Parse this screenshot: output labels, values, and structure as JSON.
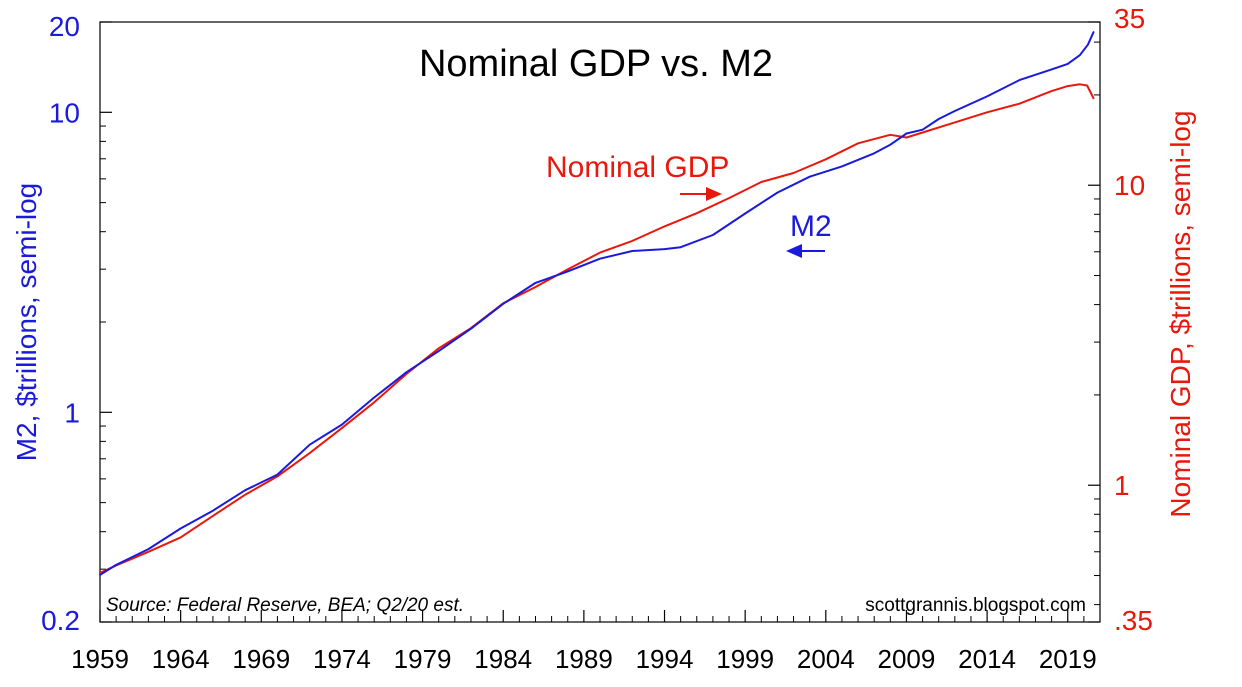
{
  "chart_data": {
    "type": "line",
    "title": "Nominal GDP vs. M2",
    "source_note": "Source:  Federal Reserve, BEA; Q2/20 est.",
    "credit": "scottgrannis.blogspot.com",
    "xlabel": "",
    "xlim": [
      1959,
      2021
    ],
    "x_ticks": [
      1959,
      1964,
      1969,
      1974,
      1979,
      1984,
      1989,
      1994,
      1999,
      2004,
      2009,
      2014,
      2019
    ],
    "y_left": {
      "label": "M2, $trillions, semi-log",
      "scale": "log",
      "range": [
        0.2,
        20
      ],
      "ticks": [
        {
          "value": 0.2,
          "label": "0.2"
        },
        {
          "value": 1,
          "label": "1"
        },
        {
          "value": 10,
          "label": "10"
        },
        {
          "value": 20,
          "label": "20"
        }
      ],
      "color": "#1a1adc"
    },
    "y_right": {
      "label": "Nominal GDP, $trillions, semi-log",
      "scale": "log",
      "range": [
        0.35,
        35
      ],
      "ticks": [
        {
          "value": 0.35,
          "label": ".35"
        },
        {
          "value": 1,
          "label": "1"
        },
        {
          "value": 10,
          "label": "10"
        },
        {
          "value": 35,
          "label": "35"
        }
      ],
      "color": "#e8180c"
    },
    "annotations": [
      {
        "text": "Nominal GDP",
        "series": "Nominal GDP",
        "arrow": "right"
      },
      {
        "text": "M2",
        "series": "M2",
        "arrow": "left"
      }
    ],
    "series": [
      {
        "name": "M2",
        "axis": "left",
        "color": "#1a1adc",
        "x": [
          1959,
          1960,
          1962,
          1964,
          1966,
          1968,
          1970,
          1972,
          1974,
          1976,
          1978,
          1980,
          1982,
          1984,
          1986,
          1988,
          1990,
          1992,
          1994,
          1995,
          1997,
          1999,
          2001,
          2003,
          2005,
          2007,
          2008,
          2009,
          2010,
          2011,
          2012,
          2014,
          2016,
          2018,
          2019,
          2019.75,
          2020.25,
          2020.6
        ],
        "values": [
          0.287,
          0.31,
          0.35,
          0.41,
          0.47,
          0.55,
          0.62,
          0.78,
          0.91,
          1.12,
          1.36,
          1.6,
          1.9,
          2.3,
          2.7,
          2.95,
          3.25,
          3.45,
          3.5,
          3.55,
          3.9,
          4.6,
          5.4,
          6.1,
          6.6,
          7.3,
          7.8,
          8.5,
          8.75,
          9.5,
          10.1,
          11.3,
          12.8,
          13.9,
          14.5,
          15.5,
          16.8,
          18.5
        ]
      },
      {
        "name": "Nominal GDP",
        "axis": "right",
        "color": "#e8180c",
        "x": [
          1959,
          1960,
          1962,
          1964,
          1966,
          1968,
          1970,
          1972,
          1974,
          1976,
          1978,
          1980,
          1982,
          1984,
          1986,
          1988,
          1990,
          1992,
          1994,
          1996,
          1998,
          2000,
          2002,
          2004,
          2006,
          2008,
          2009,
          2010,
          2012,
          2014,
          2016,
          2018,
          2019,
          2019.75,
          2020.2,
          2020.6
        ],
        "values": [
          0.51,
          0.54,
          0.6,
          0.67,
          0.79,
          0.93,
          1.07,
          1.28,
          1.55,
          1.89,
          2.35,
          2.86,
          3.34,
          4.04,
          4.58,
          5.24,
          5.96,
          6.52,
          7.29,
          8.07,
          9.06,
          10.25,
          10.98,
          12.2,
          13.8,
          14.72,
          14.42,
          14.99,
          16.2,
          17.5,
          18.7,
          20.6,
          21.4,
          21.7,
          21.5,
          19.5
        ]
      }
    ]
  }
}
